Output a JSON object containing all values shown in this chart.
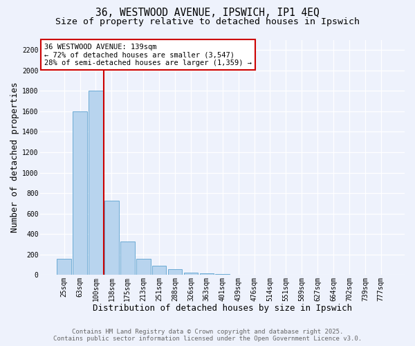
{
  "title_line1": "36, WESTWOOD AVENUE, IPSWICH, IP1 4EQ",
  "title_line2": "Size of property relative to detached houses in Ipswich",
  "xlabel": "Distribution of detached houses by size in Ipswich",
  "ylabel": "Number of detached properties",
  "categories": [
    "25sqm",
    "63sqm",
    "100sqm",
    "138sqm",
    "175sqm",
    "213sqm",
    "251sqm",
    "288sqm",
    "326sqm",
    "363sqm",
    "401sqm",
    "439sqm",
    "476sqm",
    "514sqm",
    "551sqm",
    "589sqm",
    "627sqm",
    "664sqm",
    "702sqm",
    "739sqm",
    "777sqm"
  ],
  "values": [
    160,
    1600,
    1800,
    725,
    325,
    160,
    90,
    55,
    25,
    15,
    10,
    5,
    5,
    0,
    0,
    0,
    0,
    0,
    0,
    0,
    0
  ],
  "bar_color": "#b8d4ee",
  "bar_edge_color": "#6aaad4",
  "property_line_x": 2.5,
  "property_line_color": "#cc0000",
  "ylim": [
    0,
    2300
  ],
  "yticks": [
    0,
    200,
    400,
    600,
    800,
    1000,
    1200,
    1400,
    1600,
    1800,
    2000,
    2200
  ],
  "annotation_title": "36 WESTWOOD AVENUE: 139sqm",
  "annotation_line1": "← 72% of detached houses are smaller (3,547)",
  "annotation_line2": "28% of semi-detached houses are larger (1,359) →",
  "annotation_box_facecolor": "#ffffff",
  "annotation_box_edgecolor": "#cc0000",
  "background_color": "#eef2fc",
  "grid_color": "#ffffff",
  "footer_line1": "Contains HM Land Registry data © Crown copyright and database right 2025.",
  "footer_line2": "Contains public sector information licensed under the Open Government Licence v3.0.",
  "title_fontsize": 10.5,
  "subtitle_fontsize": 9.5,
  "axis_label_fontsize": 9,
  "tick_fontsize": 7,
  "annotation_fontsize": 7.5,
  "footer_fontsize": 6.5
}
